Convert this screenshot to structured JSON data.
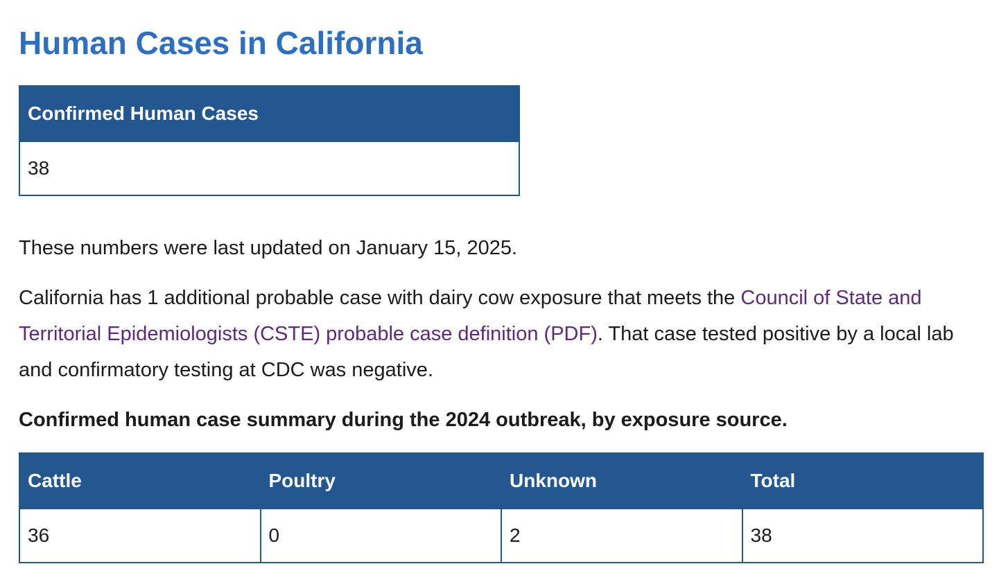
{
  "title": "Human Cases in California",
  "summary_table": {
    "header": "Confirmed Human Cases",
    "value": 38
  },
  "updated_note": "These numbers were last updated on January 15, 2025.",
  "probable_note": {
    "before": "California has 1 additional probable case with dairy cow exposure that meets the ",
    "link": "Council of State and Territorial Epidemiologists (CSTE) probable case definition (PDF)",
    "after": ". That case tested positive by a local lab and confirmatory testing at CDC was negative."
  },
  "caption": "Confirmed human case summary during the 2024 outbreak, by exposure source.",
  "exposure_table": {
    "headers": [
      "Cattle",
      "Poultry",
      "Unknown",
      "Total"
    ],
    "rows": [
      [
        36,
        0,
        2,
        38
      ]
    ]
  }
}
